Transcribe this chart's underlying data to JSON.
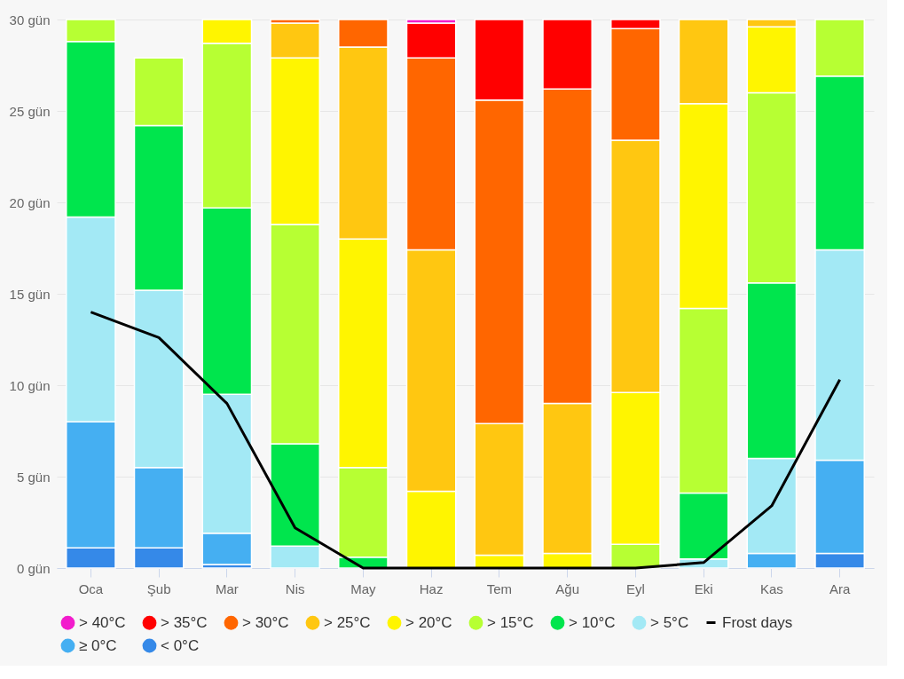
{
  "chart_data": {
    "type": "bar",
    "stacked": true,
    "categories": [
      "Oca",
      "Şub",
      "Mar",
      "Nis",
      "May",
      "Haz",
      "Tem",
      "Ağu",
      "Eyl",
      "Eki",
      "Kas",
      "Ara"
    ],
    "ylim": [
      0,
      30
    ],
    "yticks": [
      {
        "value": 0,
        "label": "0 gün"
      },
      {
        "value": 5,
        "label": "5 gün"
      },
      {
        "value": 10,
        "label": "10 gün"
      },
      {
        "value": 15,
        "label": "15 gün"
      },
      {
        "value": 20,
        "label": "20 gün"
      },
      {
        "value": 25,
        "label": "25 gün"
      },
      {
        "value": 30,
        "label": "30 gün"
      }
    ],
    "grid": "y",
    "legend": "bottom",
    "series": [
      {
        "name": "< 0°C",
        "color": "#3589e8",
        "values": [
          1.1,
          1.1,
          0.2,
          null,
          null,
          null,
          null,
          null,
          null,
          null,
          null,
          0.8
        ]
      },
      {
        "name": "≥ 0°C",
        "color": "#45aff2",
        "values": [
          6.9,
          4.4,
          1.7,
          null,
          null,
          null,
          null,
          null,
          null,
          null,
          0.8,
          5.1
        ]
      },
      {
        "name": "> 5°C",
        "color": "#a3e9f5",
        "values": [
          11.2,
          9.7,
          7.6,
          1.2,
          null,
          null,
          null,
          null,
          null,
          0.5,
          5.2,
          11.5
        ]
      },
      {
        "name": "> 10°C",
        "color": "#00e54d",
        "values": [
          9.6,
          9.0,
          10.2,
          5.6,
          0.6,
          null,
          null,
          null,
          null,
          3.6,
          9.6,
          9.5
        ]
      },
      {
        "name": "> 15°C",
        "color": "#b7ff33",
        "values": [
          1.2,
          3.7,
          9.0,
          12.0,
          4.9,
          null,
          null,
          null,
          1.3,
          10.1,
          10.4,
          3.1
        ]
      },
      {
        "name": "> 20°C",
        "color": "#fff500",
        "values": [
          null,
          null,
          1.3,
          9.1,
          12.5,
          4.2,
          0.7,
          0.8,
          8.3,
          11.2,
          3.6,
          null
        ]
      },
      {
        "name": "> 25°C",
        "color": "#ffc711",
        "values": [
          null,
          null,
          null,
          1.9,
          10.5,
          13.2,
          7.2,
          8.2,
          13.8,
          4.6,
          0.4,
          null
        ]
      },
      {
        "name": "> 30°C",
        "color": "#ff6600",
        "values": [
          null,
          null,
          null,
          0.2,
          1.5,
          10.5,
          17.7,
          17.2,
          6.1,
          null,
          null,
          null
        ]
      },
      {
        "name": "> 35°C",
        "color": "#ff0000",
        "values": [
          null,
          null,
          null,
          null,
          null,
          1.9,
          4.4,
          3.8,
          0.5,
          null,
          null,
          null
        ]
      },
      {
        "name": "> 40°C",
        "color": "#f21ccc",
        "values": [
          null,
          null,
          null,
          null,
          null,
          0.2,
          null,
          null,
          null,
          null,
          null,
          null
        ]
      },
      {
        "name": "Frost days",
        "type": "line",
        "color": "#000000",
        "values": [
          14.0,
          12.6,
          9.0,
          2.2,
          0.0,
          0.0,
          0.0,
          0.0,
          0.0,
          0.3,
          3.4,
          10.3
        ]
      }
    ]
  }
}
